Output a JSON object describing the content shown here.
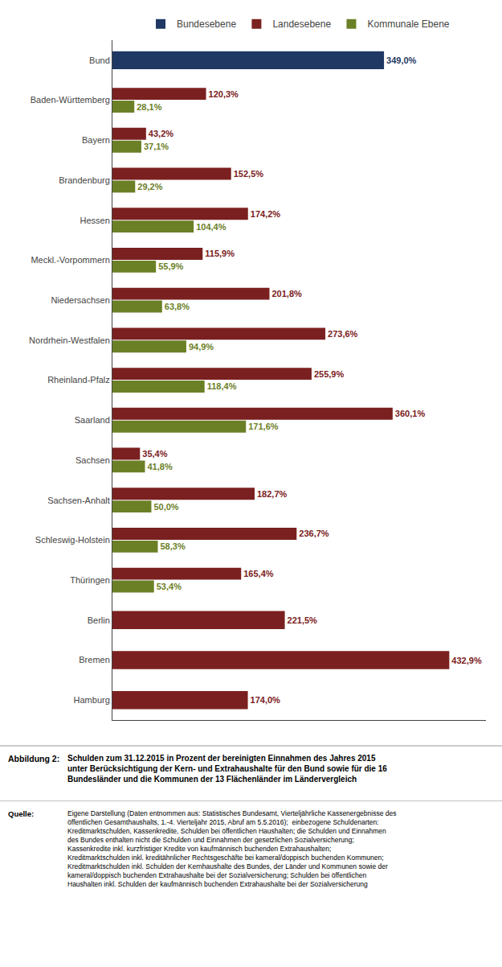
{
  "chart_data": {
    "type": "bar",
    "orientation": "horizontal",
    "categories": [
      "Bund",
      "Baden-Württemberg",
      "Bayern",
      "Brandenburg",
      "Hessen",
      "Meckl.-Vorpommern",
      "Niedersachsen",
      "Nordrhein-Westfalen",
      "Rheinland-Pfalz",
      "Saarland",
      "Sachsen",
      "Sachsen-Anhalt",
      "Schleswig-Holstein",
      "Thüringen",
      "Berlin",
      "Bremen",
      "Hamburg"
    ],
    "series": [
      {
        "name": "Bundesebene",
        "color": "#1F3864",
        "values": [
          349.0,
          null,
          null,
          null,
          null,
          null,
          null,
          null,
          null,
          null,
          null,
          null,
          null,
          null,
          null,
          null,
          null
        ],
        "value_labels": [
          "349,0%",
          null,
          null,
          null,
          null,
          null,
          null,
          null,
          null,
          null,
          null,
          null,
          null,
          null,
          null,
          null,
          null
        ]
      },
      {
        "name": "Landesebene",
        "color": "#7B2020",
        "values": [
          null,
          120.3,
          43.2,
          152.5,
          174.2,
          115.9,
          201.8,
          273.6,
          255.9,
          360.1,
          35.4,
          182.7,
          236.7,
          165.4,
          221.5,
          432.9,
          174.0
        ],
        "value_labels": [
          null,
          "120,3%",
          "43,2%",
          "152,5%",
          "174,2%",
          "115,9%",
          "201,8%",
          "273,6%",
          "255,9%",
          "360,1%",
          "35,4%",
          "182,7%",
          "236,7%",
          "165,4%",
          "221,5%",
          "432,9%",
          "174,0%"
        ]
      },
      {
        "name": "Kommunale Ebene",
        "color": "#6B8026",
        "values": [
          null,
          28.1,
          37.1,
          29.2,
          104.4,
          55.9,
          63.8,
          94.9,
          118.4,
          171.6,
          41.8,
          50.0,
          58.3,
          53.4,
          null,
          null,
          null
        ],
        "value_labels": [
          null,
          "28,1%",
          "37,1%",
          "29,2%",
          "104,4%",
          "55,9%",
          "63,8%",
          "94,9%",
          "118,4%",
          "171,6%",
          "41,8%",
          "50,0%",
          "58,3%",
          "53,4%",
          null,
          null,
          null
        ]
      }
    ],
    "xlim": [
      0,
      480
    ],
    "tick_labels": "y",
    "grid": false,
    "legend": "top",
    "data_labels": true,
    "annotations": [
      "Abbildung 2:",
      "Schulden zum 31.12.2015 in Prozent der bereinigten Einnahmen des Jahres 2015\nunter Berücksichtigung der Kern- und Extrahaushalte für den Bund sowie für die 16\nBundesländer und die Kommunen der 13 Flächenländer im Ländervergleich",
      "Quelle:",
      "Eigene Darstellung (Daten entnommen aus: Statistisches Bundesamt, Vierteljährliche Kassenergebnisse des\nöffentlichen Gesamthaushalts, 1.-4. Vierteljahr 2015, Abruf am 5.5.2016);  einbezogene Schuldenarten:\nKreditmarktschulden, Kassenkredite, Schulden bei öffentlichen Haushalten; die Schulden und Einnahmen\ndes Bundes enthalten nicht die Schulden und Einnahmen der gesetzlichen Sozialversicherung;\nKassenkredite inkl. kurzfristiger Kredite von kaufmännisch buchenden Extrahaushalten;\nKreditmarktschulden inkl. kreditähnlicher Rechtsgeschäfte bei kameral/doppisch buchenden Kommunen;\nKreditmarktschulden inkl. Schulden der Kernhaushalte des Bundes, der Länder und Kommunen sowie der\nkameral/doppisch buchenden Extrahaushalte bei der Sozialversicherung; Schulden bei öffentlichen\nHaushalten inkl. Schulden der kaufmännisch buchenden Extrahaushalte bei der Sozialversicherung"
    ]
  }
}
